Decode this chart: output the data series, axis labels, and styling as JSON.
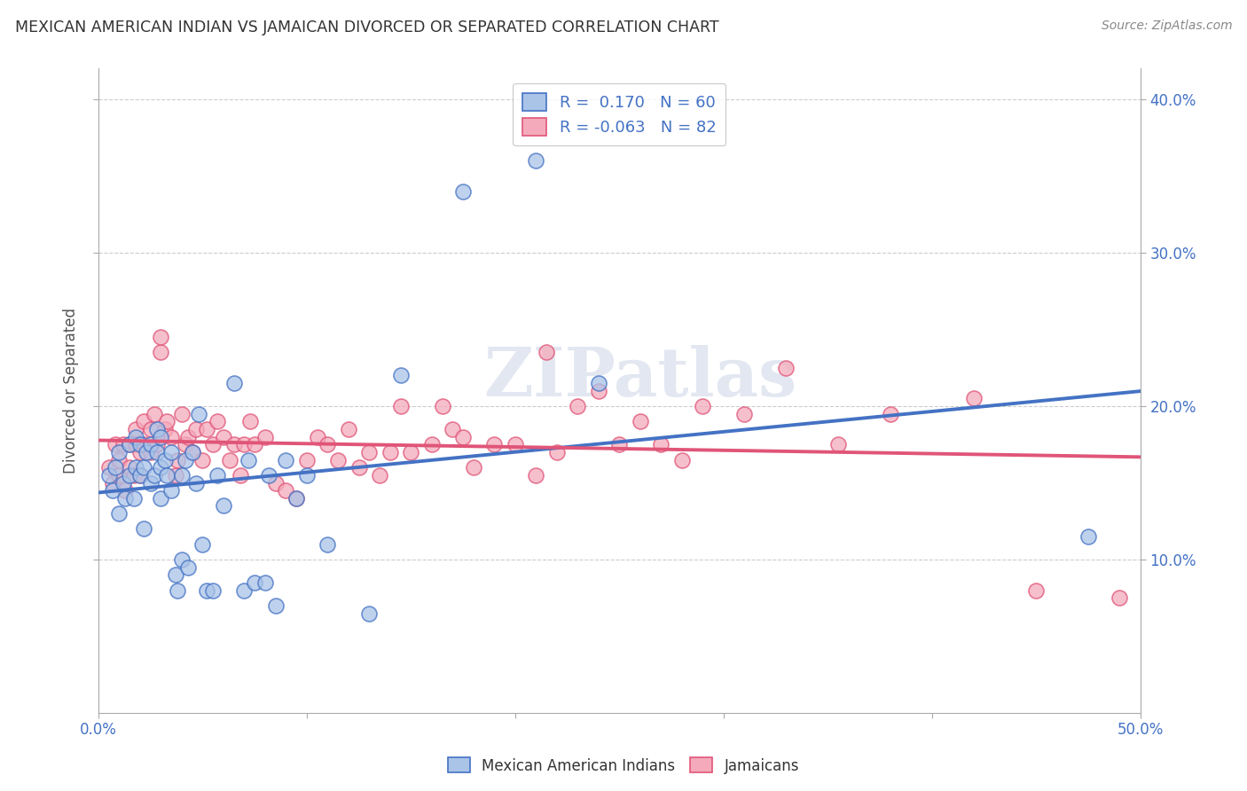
{
  "title": "MEXICAN AMERICAN INDIAN VS JAMAICAN DIVORCED OR SEPARATED CORRELATION CHART",
  "source": "Source: ZipAtlas.com",
  "ylabel": "Divorced or Separated",
  "xlim": [
    0.0,
    0.5
  ],
  "ylim": [
    0.0,
    0.42
  ],
  "xticks": [
    0.0,
    0.1,
    0.2,
    0.3,
    0.4,
    0.5
  ],
  "yticks": [
    0.1,
    0.2,
    0.3,
    0.4
  ],
  "xticklabels": [
    "0.0%",
    "",
    "",
    "",
    "",
    "50.0%"
  ],
  "yticklabels_right": [
    "10.0%",
    "20.0%",
    "30.0%",
    "40.0%"
  ],
  "legend_label1": "Mexican American Indians",
  "legend_label2": "Jamaicans",
  "r1": 0.17,
  "n1": 60,
  "r2": -0.063,
  "n2": 82,
  "color1": "#aac4e8",
  "color2": "#f4aabb",
  "line_color1": "#4472c4",
  "line_color2": "#e05578",
  "background_color": "#ffffff",
  "watermark": "ZIPatlas",
  "blue_x": [
    0.005,
    0.007,
    0.008,
    0.01,
    0.01,
    0.012,
    0.013,
    0.015,
    0.015,
    0.017,
    0.018,
    0.018,
    0.02,
    0.02,
    0.022,
    0.022,
    0.023,
    0.025,
    0.025,
    0.027,
    0.028,
    0.028,
    0.03,
    0.03,
    0.03,
    0.032,
    0.033,
    0.035,
    0.035,
    0.037,
    0.038,
    0.04,
    0.04,
    0.042,
    0.043,
    0.045,
    0.047,
    0.048,
    0.05,
    0.052,
    0.055,
    0.057,
    0.06,
    0.065,
    0.07,
    0.072,
    0.075,
    0.08,
    0.082,
    0.085,
    0.09,
    0.095,
    0.1,
    0.11,
    0.13,
    0.145,
    0.175,
    0.21,
    0.24,
    0.475
  ],
  "blue_y": [
    0.155,
    0.145,
    0.16,
    0.13,
    0.17,
    0.15,
    0.14,
    0.155,
    0.175,
    0.14,
    0.16,
    0.18,
    0.155,
    0.175,
    0.12,
    0.16,
    0.17,
    0.15,
    0.175,
    0.155,
    0.17,
    0.185,
    0.14,
    0.16,
    0.18,
    0.165,
    0.155,
    0.145,
    0.17,
    0.09,
    0.08,
    0.1,
    0.155,
    0.165,
    0.095,
    0.17,
    0.15,
    0.195,
    0.11,
    0.08,
    0.08,
    0.155,
    0.135,
    0.215,
    0.08,
    0.165,
    0.085,
    0.085,
    0.155,
    0.07,
    0.165,
    0.14,
    0.155,
    0.11,
    0.065,
    0.22,
    0.34,
    0.36,
    0.215,
    0.115
  ],
  "pink_x": [
    0.005,
    0.007,
    0.008,
    0.01,
    0.01,
    0.012,
    0.013,
    0.015,
    0.015,
    0.017,
    0.018,
    0.018,
    0.02,
    0.02,
    0.022,
    0.022,
    0.025,
    0.025,
    0.027,
    0.028,
    0.03,
    0.03,
    0.032,
    0.033,
    0.035,
    0.037,
    0.038,
    0.04,
    0.042,
    0.043,
    0.045,
    0.047,
    0.05,
    0.052,
    0.055,
    0.057,
    0.06,
    0.063,
    0.065,
    0.068,
    0.07,
    0.073,
    0.075,
    0.08,
    0.085,
    0.09,
    0.095,
    0.1,
    0.105,
    0.11,
    0.115,
    0.12,
    0.125,
    0.13,
    0.135,
    0.14,
    0.145,
    0.15,
    0.16,
    0.165,
    0.17,
    0.175,
    0.18,
    0.19,
    0.2,
    0.21,
    0.215,
    0.22,
    0.23,
    0.24,
    0.25,
    0.26,
    0.27,
    0.28,
    0.29,
    0.31,
    0.33,
    0.355,
    0.38,
    0.42,
    0.45,
    0.49
  ],
  "pink_y": [
    0.16,
    0.15,
    0.175,
    0.155,
    0.165,
    0.175,
    0.145,
    0.16,
    0.175,
    0.155,
    0.175,
    0.185,
    0.155,
    0.17,
    0.19,
    0.175,
    0.17,
    0.185,
    0.195,
    0.175,
    0.235,
    0.245,
    0.185,
    0.19,
    0.18,
    0.155,
    0.165,
    0.195,
    0.175,
    0.18,
    0.17,
    0.185,
    0.165,
    0.185,
    0.175,
    0.19,
    0.18,
    0.165,
    0.175,
    0.155,
    0.175,
    0.19,
    0.175,
    0.18,
    0.15,
    0.145,
    0.14,
    0.165,
    0.18,
    0.175,
    0.165,
    0.185,
    0.16,
    0.17,
    0.155,
    0.17,
    0.2,
    0.17,
    0.175,
    0.2,
    0.185,
    0.18,
    0.16,
    0.175,
    0.175,
    0.155,
    0.235,
    0.17,
    0.2,
    0.21,
    0.175,
    0.19,
    0.175,
    0.165,
    0.2,
    0.195,
    0.225,
    0.175,
    0.195,
    0.205,
    0.08,
    0.075
  ]
}
